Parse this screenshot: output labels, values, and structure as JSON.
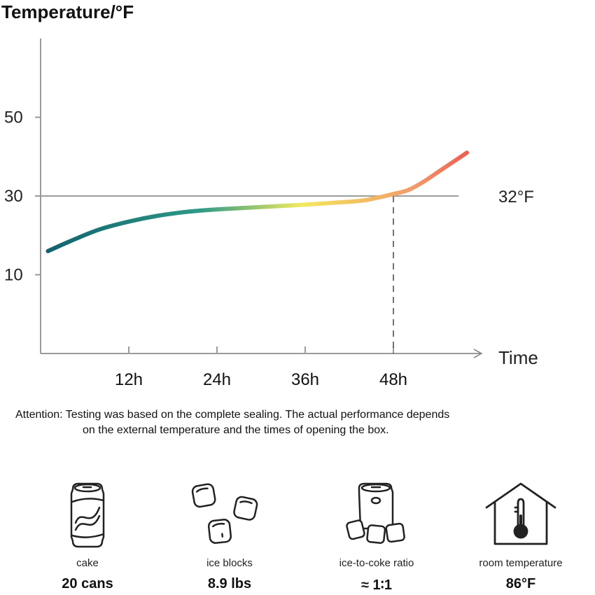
{
  "chart_data": {
    "type": "line",
    "title": "",
    "ylabel": "Temperature/°F",
    "xlabel": "Time",
    "x_ticks": [
      "12h",
      "24h",
      "36h",
      "48h"
    ],
    "y_ticks": [
      10,
      30,
      50
    ],
    "ylim": [
      -10,
      70
    ],
    "xlim": [
      0,
      60
    ],
    "grid": false,
    "reference_line": {
      "y": 32,
      "label": "32°F"
    },
    "marker_line": {
      "x": 48
    },
    "gradient_colors": [
      "#12636f",
      "#2e9a86",
      "#f2ea5e",
      "#f2996a",
      "#e6323e"
    ],
    "series": [
      {
        "x": [
          1,
          4,
          8,
          12,
          16,
          20,
          24,
          28,
          32,
          36,
          40,
          44,
          48,
          50,
          52,
          54,
          56,
          58
        ],
        "y": [
          16,
          18.5,
          21.5,
          23.5,
          25,
          26,
          26.6,
          27,
          27.4,
          27.8,
          28.3,
          28.9,
          30.5,
          31.5,
          33.5,
          36,
          38.5,
          41
        ]
      }
    ]
  },
  "note": {
    "line1": "Attention: Testing was based on the complete sealing. The actual performance depends",
    "line2": "on the external temperature and the times of opening the box."
  },
  "stats": [
    {
      "icon": "soda-can-icon",
      "label": "cake",
      "value": "20 cans"
    },
    {
      "icon": "ice-cubes-icon",
      "label": "ice blocks",
      "value": "8.9 lbs"
    },
    {
      "icon": "can-with-ice-icon",
      "label": "ice-to-coke ratio",
      "value": "≈ 1∶1"
    },
    {
      "icon": "house-thermometer-icon",
      "label": "room temperature",
      "value": "86°F"
    }
  ]
}
